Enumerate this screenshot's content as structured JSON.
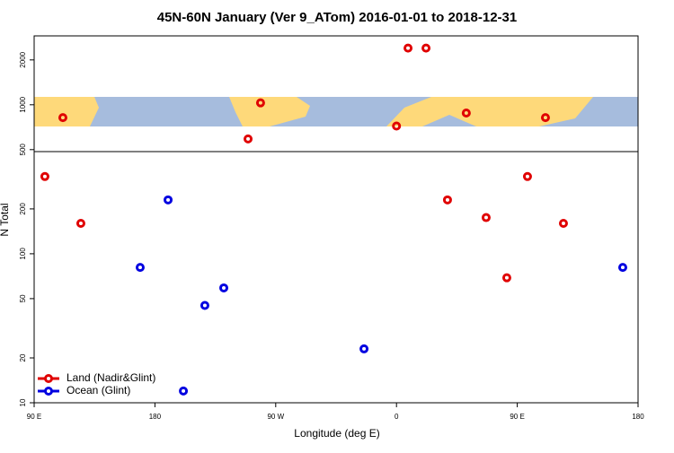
{
  "chart_data": {
    "type": "scatter",
    "title": "45N-60N January (Ver 9_ATom)   2016-01-01 to 2018-12-31",
    "x_label": "Longitude (deg E)",
    "y_label": "N Total",
    "xlim": [
      90,
      540
    ],
    "xticks": [
      {
        "value": 90,
        "label": "90 E"
      },
      {
        "value": 180,
        "label": "180"
      },
      {
        "value": 270,
        "label": "90 W"
      },
      {
        "value": 360,
        "label": "0"
      },
      {
        "value": 450,
        "label": "90 E"
      },
      {
        "value": 540,
        "label": "180"
      }
    ],
    "ylim": [
      10,
      2900
    ],
    "y_log": true,
    "yticks": [
      10,
      20,
      50,
      100,
      200,
      500,
      1000,
      2000
    ],
    "legend": "bottom-left",
    "series": [
      {
        "name": "Land (Nadir&Glint)",
        "color": "#e00000",
        "x": [
          98,
          111.4,
          124.8,
          249.4,
          258.7,
          360,
          368.6,
          382,
          398,
          412,
          426.8,
          442.2,
          457.6,
          471,
          484.4
        ],
        "values": [
          330,
          820,
          160,
          590,
          1030,
          720,
          2400,
          2400,
          230,
          880,
          175,
          69,
          330,
          820,
          160
        ]
      },
      {
        "name": "Ocean (Glint)",
        "color": "#0000e0",
        "x": [
          169,
          189.8,
          201.2,
          217.2,
          231.3,
          335.8,
          528.6
        ],
        "values": [
          81,
          230,
          12,
          45,
          59,
          23,
          81
        ]
      }
    ]
  }
}
